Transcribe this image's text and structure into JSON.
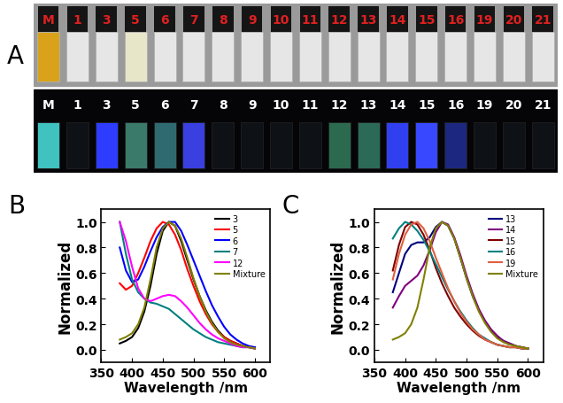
{
  "photo": {
    "annotation": "A",
    "vial_labels": [
      "M",
      "1",
      "3",
      "5",
      "6",
      "7",
      "8",
      "9",
      "10",
      "11",
      "12",
      "13",
      "14",
      "15",
      "16",
      "19",
      "20",
      "21"
    ]
  },
  "chart_data": [
    {
      "type": "line",
      "annotation": "B",
      "x_label": "Wavelength /nm",
      "y_label": "Normalized",
      "x": [
        380,
        390,
        400,
        410,
        420,
        430,
        440,
        450,
        460,
        470,
        480,
        490,
        500,
        510,
        520,
        530,
        540,
        550,
        560,
        570,
        580,
        590,
        600
      ],
      "xlim": [
        350,
        625
      ],
      "xticks": [
        350,
        400,
        450,
        500,
        550,
        600
      ],
      "ylim": [
        -0.1,
        1.1
      ],
      "yticks": [
        {
          "value": 0.0,
          "label": "0.0"
        },
        0.2,
        0.4,
        0.6,
        0.8,
        {
          "value": 1.0,
          "label": "1.0"
        }
      ],
      "legend": "upper right",
      "grid": false,
      "series": [
        {
          "name": "3",
          "color": "#000000",
          "values": [
            0.05,
            0.07,
            0.1,
            0.17,
            0.3,
            0.5,
            0.75,
            0.93,
            1.0,
            0.97,
            0.85,
            0.7,
            0.55,
            0.42,
            0.31,
            0.22,
            0.15,
            0.1,
            0.07,
            0.05,
            0.03,
            0.02,
            0.02
          ]
        },
        {
          "name": "5",
          "color": "#ff0000",
          "values": [
            0.52,
            0.47,
            0.5,
            0.6,
            0.72,
            0.85,
            0.95,
            1.0,
            0.98,
            0.9,
            0.78,
            0.63,
            0.5,
            0.38,
            0.28,
            0.2,
            0.14,
            0.1,
            0.07,
            0.05,
            0.03,
            0.02,
            0.01
          ]
        },
        {
          "name": "6",
          "color": "#0000ff",
          "values": [
            0.8,
            0.62,
            0.53,
            0.55,
            0.65,
            0.77,
            0.88,
            0.96,
            1.0,
            1.0,
            0.93,
            0.82,
            0.7,
            0.58,
            0.46,
            0.35,
            0.26,
            0.18,
            0.12,
            0.08,
            0.05,
            0.03,
            0.02
          ]
        },
        {
          "name": "7",
          "color": "#008080",
          "values": [
            1.0,
            0.75,
            0.55,
            0.45,
            0.4,
            0.37,
            0.36,
            0.34,
            0.32,
            0.28,
            0.24,
            0.2,
            0.16,
            0.13,
            0.1,
            0.08,
            0.06,
            0.05,
            0.04,
            0.03,
            0.02,
            0.02,
            0.01
          ]
        },
        {
          "name": "12",
          "color": "#ff00ff",
          "values": [
            1.0,
            0.85,
            0.65,
            0.48,
            0.4,
            0.38,
            0.4,
            0.42,
            0.43,
            0.42,
            0.38,
            0.33,
            0.27,
            0.21,
            0.16,
            0.12,
            0.09,
            0.07,
            0.05,
            0.03,
            0.02,
            0.02,
            0.01
          ]
        },
        {
          "name": "Mixture",
          "color": "#808000",
          "values": [
            0.08,
            0.1,
            0.13,
            0.2,
            0.33,
            0.55,
            0.8,
            0.95,
            1.0,
            0.97,
            0.87,
            0.72,
            0.56,
            0.42,
            0.3,
            0.21,
            0.14,
            0.09,
            0.06,
            0.04,
            0.03,
            0.02,
            0.01
          ]
        }
      ]
    },
    {
      "type": "line",
      "annotation": "C",
      "x_label": "Wavelength /nm",
      "y_label": "Normalized",
      "x": [
        380,
        390,
        400,
        410,
        420,
        430,
        440,
        450,
        460,
        470,
        480,
        490,
        500,
        510,
        520,
        530,
        540,
        550,
        560,
        570,
        580,
        590,
        600
      ],
      "xlim": [
        350,
        625
      ],
      "xticks": [
        350,
        400,
        450,
        500,
        550,
        600
      ],
      "ylim": [
        -0.1,
        1.1
      ],
      "yticks": [
        {
          "value": 0.0,
          "label": "0.0"
        },
        0.2,
        0.4,
        0.6,
        0.8,
        {
          "value": 1.0,
          "label": "1.0"
        }
      ],
      "legend": "upper right",
      "grid": false,
      "series": [
        {
          "name": "13",
          "color": "#000080",
          "values": [
            0.45,
            0.6,
            0.75,
            0.82,
            0.84,
            0.84,
            0.88,
            0.96,
            1.0,
            0.97,
            0.87,
            0.72,
            0.56,
            0.42,
            0.31,
            0.22,
            0.15,
            0.1,
            0.07,
            0.05,
            0.03,
            0.02,
            0.01
          ]
        },
        {
          "name": "14",
          "color": "#800080",
          "values": [
            0.33,
            0.42,
            0.5,
            0.54,
            0.58,
            0.66,
            0.78,
            0.92,
            1.0,
            0.98,
            0.88,
            0.74,
            0.58,
            0.44,
            0.32,
            0.23,
            0.16,
            0.11,
            0.07,
            0.05,
            0.03,
            0.02,
            0.01
          ]
        },
        {
          "name": "15",
          "color": "#800000",
          "values": [
            0.62,
            0.82,
            0.96,
            1.0,
            0.98,
            0.9,
            0.78,
            0.64,
            0.52,
            0.42,
            0.33,
            0.26,
            0.2,
            0.15,
            0.11,
            0.08,
            0.06,
            0.04,
            0.03,
            0.02,
            0.02,
            0.01,
            0.01
          ]
        },
        {
          "name": "16",
          "color": "#008080",
          "values": [
            0.87,
            0.95,
            1.0,
            0.98,
            0.93,
            0.86,
            0.77,
            0.67,
            0.57,
            0.47,
            0.38,
            0.3,
            0.23,
            0.17,
            0.12,
            0.09,
            0.06,
            0.04,
            0.03,
            0.02,
            0.02,
            0.01,
            0.01
          ]
        },
        {
          "name": "19",
          "color": "#e06040",
          "values": [
            0.55,
            0.75,
            0.9,
            0.98,
            1.0,
            0.95,
            0.85,
            0.72,
            0.6,
            0.48,
            0.38,
            0.29,
            0.22,
            0.16,
            0.12,
            0.08,
            0.06,
            0.04,
            0.03,
            0.02,
            0.02,
            0.01,
            0.01
          ]
        },
        {
          "name": "Mixture",
          "color": "#808000",
          "values": [
            0.08,
            0.1,
            0.13,
            0.2,
            0.33,
            0.55,
            0.8,
            0.95,
            1.0,
            0.97,
            0.87,
            0.72,
            0.56,
            0.42,
            0.3,
            0.21,
            0.14,
            0.09,
            0.06,
            0.04,
            0.03,
            0.02,
            0.01
          ]
        }
      ]
    }
  ]
}
